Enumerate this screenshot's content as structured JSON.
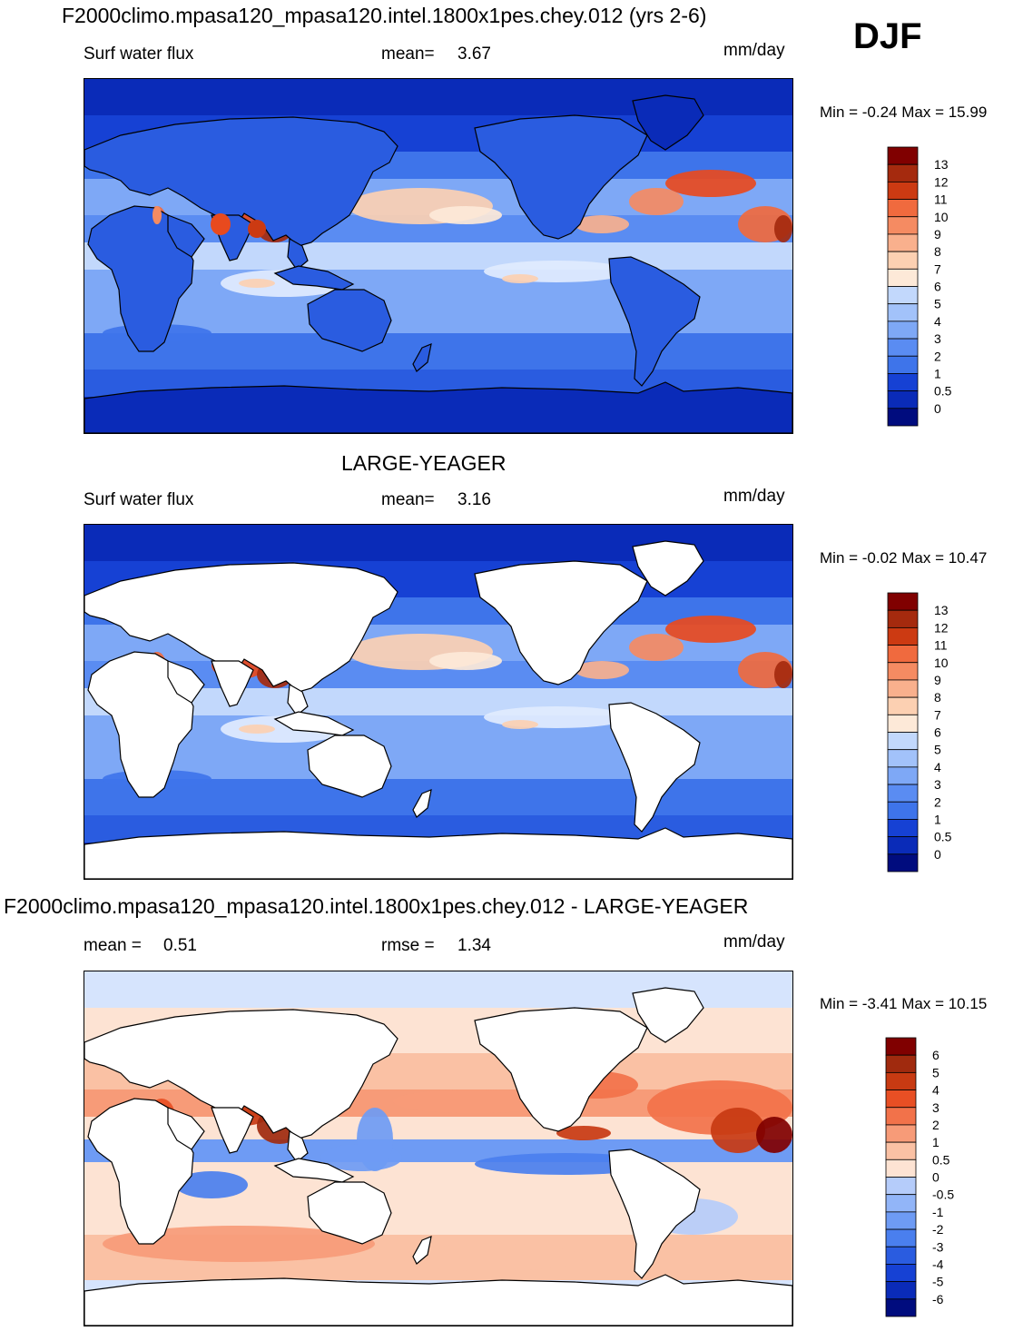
{
  "season": "DJF",
  "units": "mm/day",
  "colors": {
    "levels_scale": [
      "#000c7e",
      "#0a2bb8",
      "#1641d4",
      "#2a5ce0",
      "#3e74ea",
      "#5a8cf2",
      "#7ea8f6",
      "#a2c2fa",
      "#c2d8fc",
      "#e1ecfe",
      "#fde9d8",
      "#fcd0b2",
      "#f9b08d",
      "#f58b62",
      "#f06a3e",
      "#e84a1e",
      "#cc3a12",
      "#a52a0e",
      "#800000"
    ],
    "diff_scale": [
      "#000c7e",
      "#0a2bb8",
      "#1641d4",
      "#2a5ce0",
      "#4a7fee",
      "#6e9bf4",
      "#92b5f8",
      "#b5ccfa",
      "#d6e4fd",
      "#fde3d3",
      "#fac1a4",
      "#f79b78",
      "#f2724a",
      "#e84f24",
      "#c83a12",
      "#a02a0e",
      "#800000"
    ],
    "coast": "#000000",
    "land_fill": "#ffffff"
  },
  "chart_data": [
    {
      "type": "heatmap",
      "title": "F2000climo.mpasa120_mpasa120.intel.1800x1pes.chey.012 (yrs 2-6)",
      "variable": "Surf water flux",
      "mean_label": "mean=",
      "mean_value": "3.67",
      "units": "mm/day",
      "min_max": "Min =  -0.24 Max =  15.99",
      "min": -0.24,
      "max": 15.99,
      "colorbar_levels": [
        "13",
        "12",
        "11",
        "10",
        "9",
        "8",
        "7",
        "6",
        "5",
        "4",
        "3",
        "2",
        "1",
        "0.5",
        "0"
      ],
      "land_masked": false
    },
    {
      "type": "heatmap",
      "title": "LARGE-YEAGER",
      "variable": "Surf water flux",
      "mean_label": "mean=",
      "mean_value": "3.16",
      "units": "mm/day",
      "min_max": "Min =  -0.02 Max =  10.47",
      "min": -0.02,
      "max": 10.47,
      "colorbar_levels": [
        "13",
        "12",
        "11",
        "10",
        "9",
        "8",
        "7",
        "6",
        "5",
        "4",
        "3",
        "2",
        "1",
        "0.5",
        "0"
      ],
      "land_masked": true
    },
    {
      "type": "heatmap",
      "title": "F2000climo.mpasa120_mpasa120.intel.1800x1pes.chey.012 - LARGE-YEAGER",
      "mean_label": "mean =",
      "mean_value": "0.51",
      "rmse_label": "rmse =",
      "rmse_value": "1.34",
      "units": "mm/day",
      "min_max": "Min =  -3.41 Max =  10.15",
      "min": -3.41,
      "max": 10.15,
      "colorbar_levels": [
        "6",
        "5",
        "4",
        "3",
        "2",
        "1",
        "0.5",
        "0",
        "-0.5",
        "-1",
        "-2",
        "-3",
        "-4",
        "-5",
        "-6"
      ],
      "land_masked": true
    }
  ]
}
